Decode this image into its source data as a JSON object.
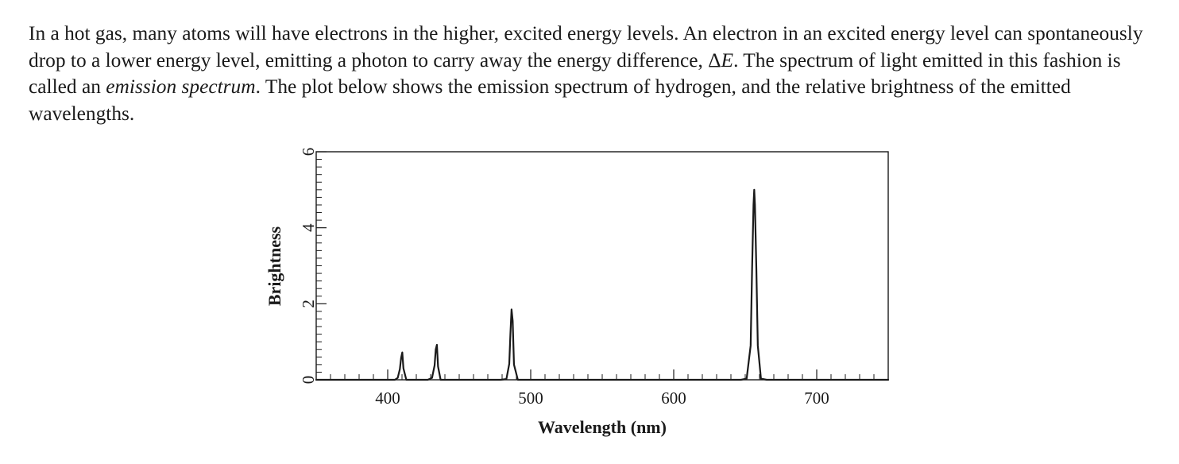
{
  "paragraph": {
    "part1": "In a hot gas, many atoms will have electrons in the higher, excited energy levels. An electron in an excited energy level can spontaneously drop to a lower energy level, emitting a photon to carry away the energy difference, ",
    "symbol_delta": "Δ",
    "symbol_E": "E",
    "part2": ". The spectrum of light emitted in this fashion is called an ",
    "emphasis": "emission spectrum",
    "part3": ". The plot below shows the emission spectrum of hydrogen, and the relative brightness of the emitted wavelengths."
  },
  "chart_data": {
    "type": "line",
    "title": "",
    "xlabel": "Wavelength (nm)",
    "ylabel": "Brightness",
    "xlim": [
      350,
      750
    ],
    "ylim": [
      0,
      6
    ],
    "x_ticks": [
      400,
      500,
      600,
      700
    ],
    "y_ticks": [
      0,
      2,
      4,
      6
    ],
    "grid": false,
    "legend": "none",
    "line_color": "#1a1a1a",
    "series": [
      {
        "x": [
          350,
          405,
          407,
          408.5,
          409.4,
          410.2,
          411,
          413,
          428,
          431,
          432.8,
          433.6,
          434.4,
          435.2,
          437,
          479,
          483,
          485,
          485.8,
          486.6,
          487.4,
          488.3,
          491,
          647,
          651,
          653.8,
          654.8,
          655.8,
          656.3,
          656.8,
          657.8,
          658.8,
          661,
          665,
          750
        ],
        "y": [
          0,
          0,
          0.05,
          0.28,
          0.58,
          0.72,
          0.3,
          0,
          0,
          0.05,
          0.38,
          0.8,
          0.92,
          0.35,
          0,
          0,
          0.02,
          0.42,
          1.2,
          1.85,
          1.55,
          0.4,
          0,
          0,
          0.03,
          0.9,
          2.9,
          4.6,
          5.0,
          4.6,
          2.9,
          0.9,
          0.03,
          0,
          0
        ]
      }
    ]
  }
}
